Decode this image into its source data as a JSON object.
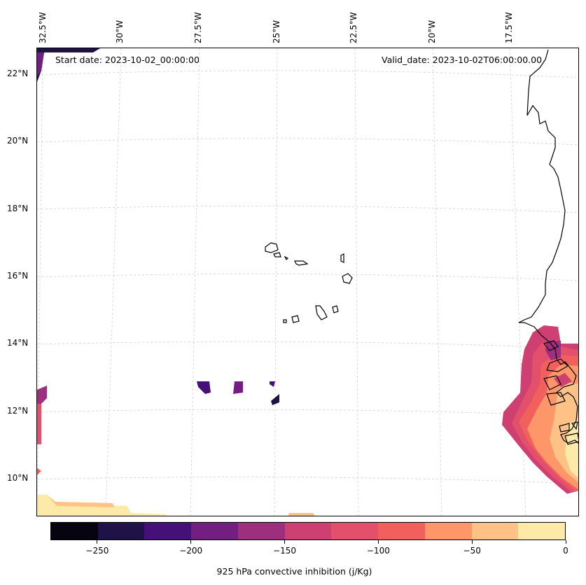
{
  "map": {
    "lon_labels": [
      "32.5°W",
      "30°W",
      "27.5°W",
      "25°W",
      "22.5°W",
      "20°W",
      "17.5°W"
    ],
    "lat_labels": [
      "22°N",
      "20°N",
      "18°N",
      "16°N",
      "14°N",
      "12°N",
      "10°N"
    ],
    "start_date": "Start date: 2023-10-02_00:00:00",
    "valid_date": "Valid_date: 2023-10-02T06:00:00.00",
    "colorbar": {
      "label": "925 hPa convective inhibition (j/Kg)",
      "tick_labels": [
        "−250",
        "−200",
        "−150",
        "−100",
        "−50",
        "0"
      ],
      "tick_values": [
        -250,
        -200,
        -150,
        -100,
        -50,
        0
      ],
      "range": [
        -275,
        0
      ],
      "level_step": 25,
      "colors": [
        "#05040f",
        "#1e1246",
        "#451077",
        "#721f81",
        "#9e2f7f",
        "#cd4071",
        "#e3506c",
        "#f1605d",
        "#fd9668",
        "#fec287",
        "#fde9a8"
      ]
    },
    "gridlines": "dashed gray",
    "projection_note": "Lambert conformal style curved grid"
  }
}
